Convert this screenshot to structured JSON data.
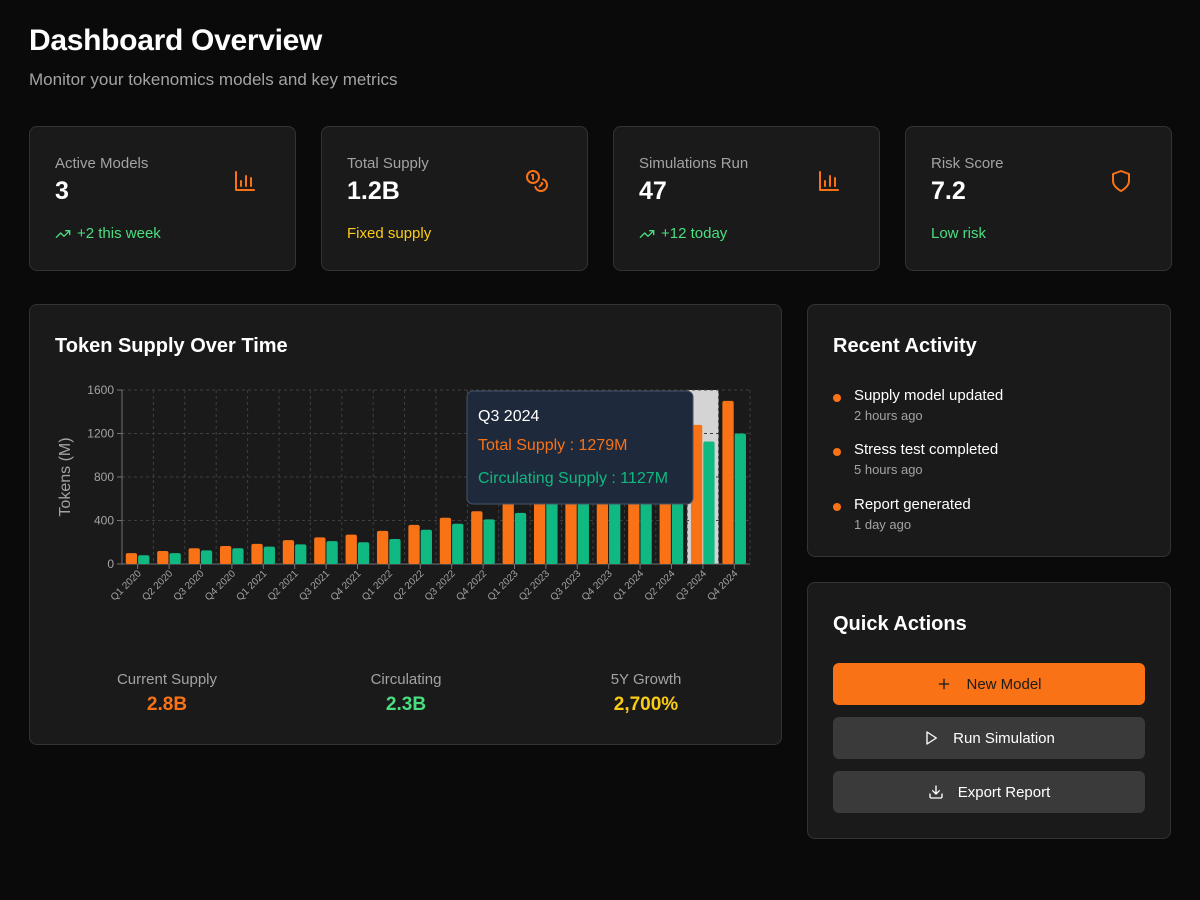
{
  "header": {
    "title": "Dashboard Overview",
    "subtitle": "Monitor your tokenomics models and key metrics"
  },
  "stats": [
    {
      "label": "Active Models",
      "value": "3",
      "foot": "+2 this week",
      "icon": "bar-chart-icon",
      "trend": true
    },
    {
      "label": "Total Supply",
      "value": "1.2B",
      "foot": "Fixed supply",
      "icon": "coins-icon",
      "trend": false
    },
    {
      "label": "Simulations Run",
      "value": "47",
      "foot": "+12 today",
      "icon": "bar-chart-icon",
      "trend": true
    },
    {
      "label": "Risk Score",
      "value": "7.2",
      "foot": "Low risk",
      "icon": "shield-icon",
      "trend": false
    }
  ],
  "chart_card": {
    "title": "Token Supply Over Time"
  },
  "chart_data": {
    "type": "bar",
    "ylabel": "Tokens (M)",
    "xlabel": "",
    "ylim": [
      0,
      1600
    ],
    "yticks": [
      0,
      400,
      800,
      1200,
      1600
    ],
    "categories": [
      "Q1 2020",
      "Q2 2020",
      "Q3 2020",
      "Q4 2020",
      "Q1 2021",
      "Q2 2021",
      "Q3 2021",
      "Q4 2021",
      "Q1 2022",
      "Q2 2022",
      "Q3 2022",
      "Q4 2022",
      "Q1 2023",
      "Q2 2023",
      "Q3 2023",
      "Q4 2023",
      "Q1 2024",
      "Q2 2024",
      "Q3 2024",
      "Q4 2024"
    ],
    "series": [
      {
        "name": "Total Supply",
        "color": "#f97316",
        "values": [
          100,
          120,
          145,
          165,
          185,
          220,
          245,
          270,
          305,
          360,
          425,
          485,
          560,
          650,
          760,
          880,
          1010,
          1140,
          1279,
          1500
        ]
      },
      {
        "name": "Circulating Supply",
        "color": "#10b981",
        "values": [
          80,
          100,
          125,
          145,
          160,
          180,
          210,
          200,
          230,
          315,
          370,
          410,
          470,
          560,
          650,
          770,
          890,
          1000,
          1127,
          1200
        ]
      }
    ],
    "grid": true,
    "highlight_index": 18,
    "tooltip": {
      "title": "Q3 2024",
      "line1": "Total Supply : 1279M",
      "line2": "Circulating Supply : 1127M"
    }
  },
  "summary": [
    {
      "label": "Current Supply",
      "value": "2.8B",
      "color": "#f97316"
    },
    {
      "label": "Circulating",
      "value": "2.3B",
      "color": "#4ade80"
    },
    {
      "label": "5Y Growth",
      "value": "2,700%",
      "color": "#facc15"
    }
  ],
  "activity": {
    "title": "Recent Activity",
    "items": [
      {
        "text": "Supply model updated",
        "time": "2 hours ago"
      },
      {
        "text": "Stress test completed",
        "time": "5 hours ago"
      },
      {
        "text": "Report generated",
        "time": "1 day ago"
      }
    ]
  },
  "actions": {
    "title": "Quick Actions",
    "new_model": "New Model",
    "run_simulation": "Run Simulation",
    "export_report": "Export Report"
  },
  "colors": {
    "accent": "#f97316",
    "positive": "#4ade80",
    "warning": "#facc15",
    "circulating": "#10b981"
  }
}
